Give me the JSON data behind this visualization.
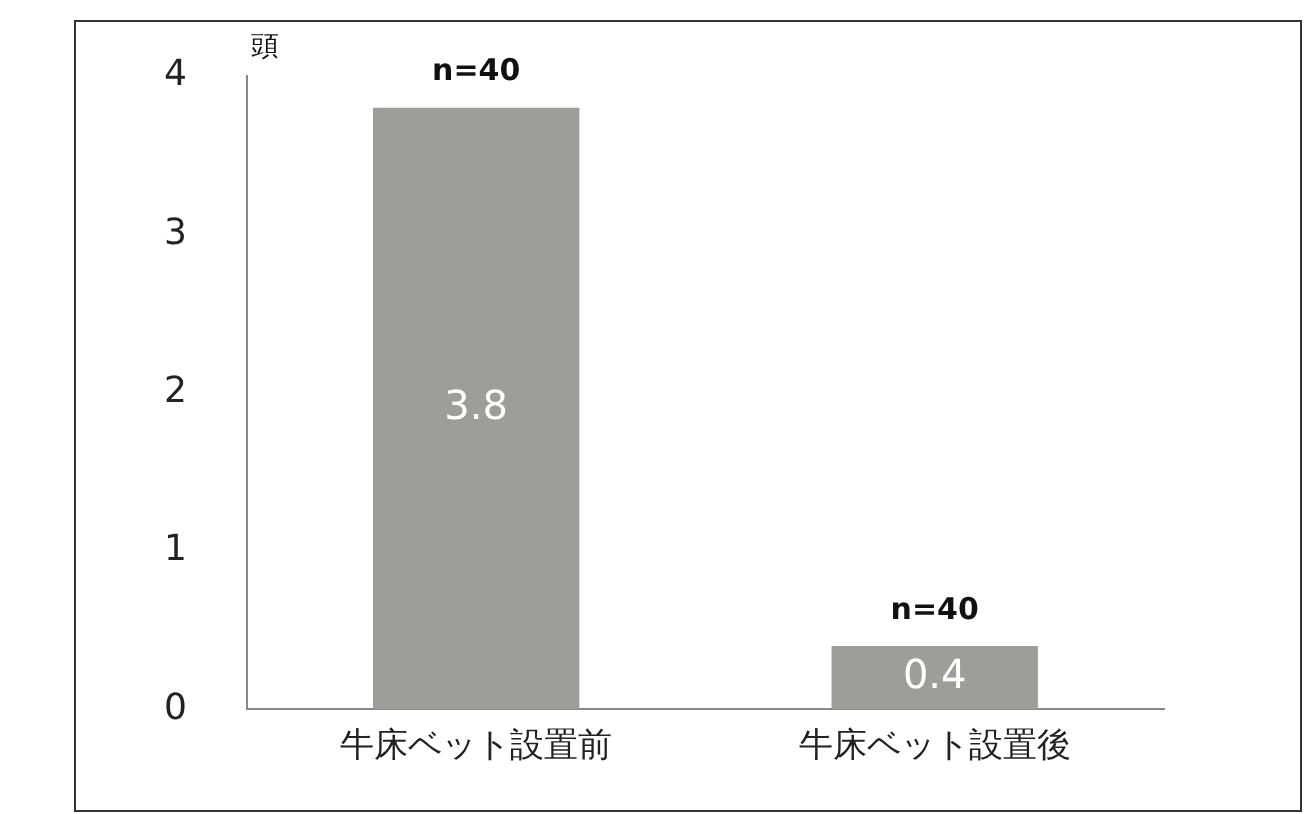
{
  "chart_data": {
    "type": "bar",
    "ylabel": "頭",
    "categories": [
      "牛床ベット設置前",
      "牛床ベット設置後"
    ],
    "values": [
      3.8,
      0.4
    ],
    "color": "#9c9e98",
    "ylim": [
      0,
      4
    ],
    "yticks": [
      0,
      1,
      2,
      3,
      4
    ],
    "grid": false,
    "legend": false,
    "data_labels": true,
    "annotations": [
      "n=40",
      "n=40"
    ]
  }
}
